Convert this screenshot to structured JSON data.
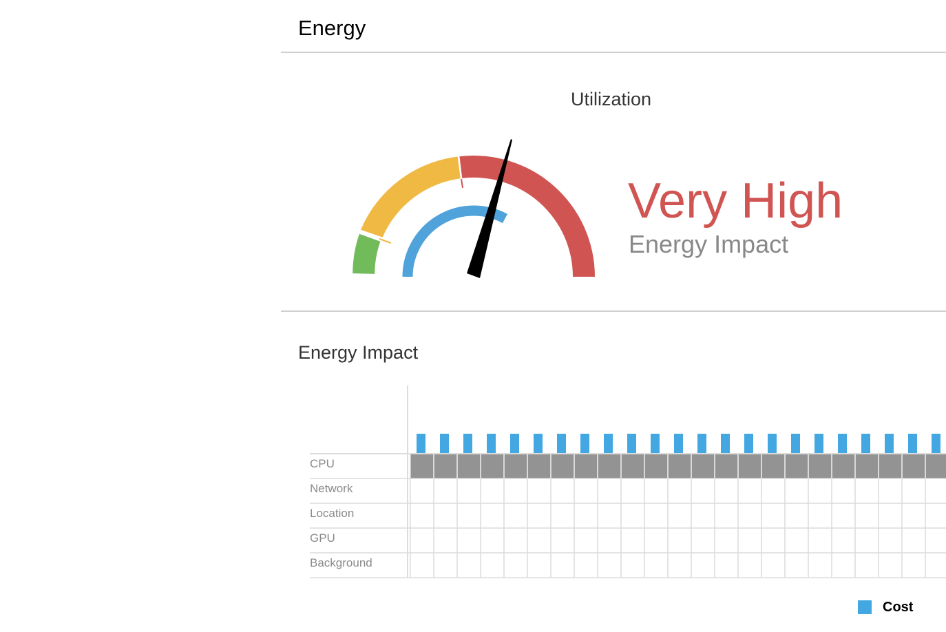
{
  "header": {
    "title": "Energy"
  },
  "utilization": {
    "title": "Utilization",
    "level": "Very High",
    "subtitle": "Energy Impact",
    "colors": {
      "low": "#72bb5b",
      "medium": "#f0b944",
      "high": "#d05552",
      "inner": "#4fa3da",
      "needle": "#000000",
      "level_text": "#d05552"
    }
  },
  "impact": {
    "title": "Energy Impact",
    "rows": [
      "CPU",
      "Network",
      "Location",
      "GPU",
      "Background"
    ],
    "active_row": "CPU",
    "colors": {
      "cost": "#43a7e2",
      "active_cell": "#939393",
      "grid": "#dcdcdc"
    }
  },
  "legend": {
    "label": "Cost",
    "color": "#43a7e2"
  }
}
